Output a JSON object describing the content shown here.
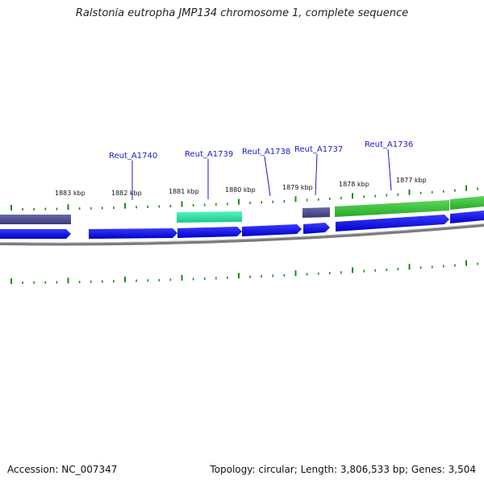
{
  "title": "Ralstonia eutropha JMP134 chromosome 1, complete sequence",
  "footer": {
    "accession": "Accession: NC_007347",
    "summary": "Topology: circular; Length: 3,806,533 bp; Genes: 3,504"
  },
  "scale_labels": [
    "1883 kbp",
    "1882 kbp",
    "1881 kbp",
    "1880 kbp",
    "1879 kbp",
    "1878 kbp",
    "1877 kbp"
  ],
  "gene_labels": [
    "Reut_A1740",
    "Reut_A1739",
    "Reut_A1738",
    "Reut_A1737",
    "Reut_A1736"
  ],
  "colors": {
    "cds_forward": "#0a0af0",
    "feature_dark": "#4b4b8a",
    "feature_teal": "#2ee6a8",
    "feature_green": "#3cc83c",
    "tick": "#1a8a1a",
    "backbone": "#808080",
    "label": "#1a1acc"
  }
}
